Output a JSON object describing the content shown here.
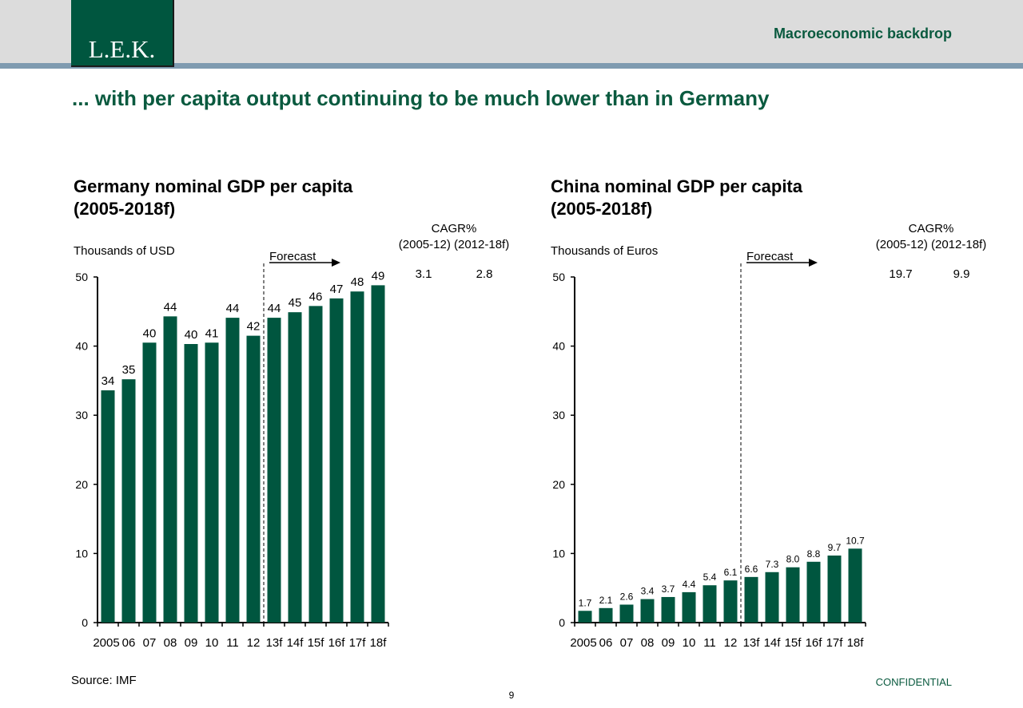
{
  "header": {
    "logo_text": "L.E.K.",
    "section_label": "Macroeconomic backdrop"
  },
  "headline": "... with per capita output continuing to be much lower than in Germany",
  "footer": {
    "source": "Source: IMF",
    "page_number": "9",
    "confidential": "CONFIDENTIAL"
  },
  "colors": {
    "bar": "#00563f",
    "brand_green": "#0a5a3f",
    "header_band": "#dcdcdc",
    "header_rule": "#7f9bb0"
  },
  "chart_data": [
    {
      "type": "bar",
      "title_line1": "Germany nominal GDP per capita",
      "title_line2": "(2005-2018f)",
      "ylabel": "Thousands of USD",
      "categories": [
        "2005",
        "06",
        "07",
        "08",
        "09",
        "10",
        "11",
        "12",
        "13f",
        "14f",
        "15f",
        "16f",
        "17f",
        "18f"
      ],
      "values": [
        33.6,
        35.2,
        40.5,
        44.3,
        40.3,
        40.5,
        44.1,
        41.5,
        44.1,
        44.9,
        45.8,
        46.9,
        47.9,
        48.8
      ],
      "value_labels": [
        "34",
        "35",
        "40",
        "44",
        "40",
        "41",
        "44",
        "42",
        "44",
        "45",
        "46",
        "47",
        "48",
        "49"
      ],
      "ylim": [
        0,
        50
      ],
      "yticks": [
        "0",
        "10",
        "20",
        "30",
        "40",
        "50"
      ],
      "forecast_label": "Forecast",
      "forecast_after_index": 7,
      "cagr": {
        "header": "CAGR%",
        "periods": "(2005-12) (2012-18f)",
        "hist": "3.1",
        "forecast": "2.8"
      }
    },
    {
      "type": "bar",
      "title_line1": "China nominal GDP per capita",
      "title_line2": "(2005-2018f)",
      "ylabel": "Thousands of Euros",
      "categories": [
        "2005",
        "06",
        "07",
        "08",
        "09",
        "10",
        "11",
        "12",
        "13f",
        "14f",
        "15f",
        "16f",
        "17f",
        "18f"
      ],
      "values": [
        1.7,
        2.1,
        2.6,
        3.4,
        3.7,
        4.4,
        5.4,
        6.1,
        6.6,
        7.3,
        8.0,
        8.8,
        9.7,
        10.7
      ],
      "value_labels": [
        "1.7",
        "2.1",
        "2.6",
        "3.4",
        "3.7",
        "4.4",
        "5.4",
        "6.1",
        "6.6",
        "7.3",
        "8.0",
        "8.8",
        "9.7",
        "10.7"
      ],
      "ylim": [
        0,
        50
      ],
      "yticks": [
        "0",
        "10",
        "20",
        "30",
        "40",
        "50"
      ],
      "forecast_label": "Forecast",
      "forecast_after_index": 7,
      "cagr": {
        "header": "CAGR%",
        "periods": "(2005-12) (2012-18f)",
        "hist": "19.7",
        "forecast": "9.9"
      }
    }
  ]
}
